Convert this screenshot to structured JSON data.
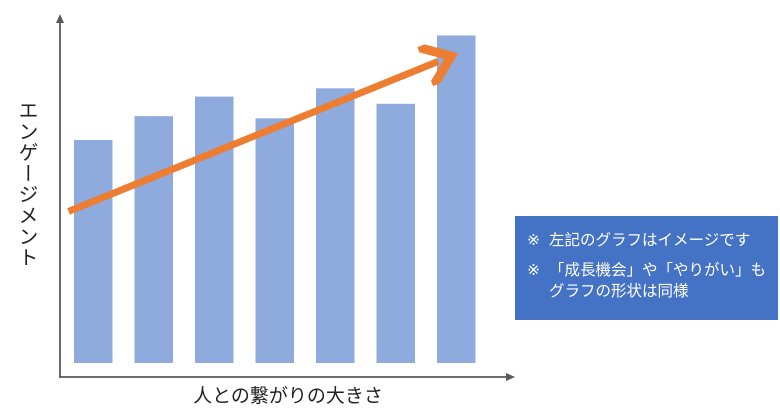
{
  "chart_data": {
    "type": "bar",
    "title": "",
    "xlabel": "人との繋がりの大きさ",
    "ylabel": "エンゲージメント",
    "categories": [
      "",
      "",
      "",
      "",
      "",
      "",
      ""
    ],
    "values": [
      229,
      252,
      271,
      250,
      279,
      264,
      330
    ],
    "ylim": [
      0,
      345
    ],
    "bar_color": "#8FAADC",
    "axis_color": "#595959",
    "trend_arrow": {
      "color": "#ED7D31",
      "from": [
        0.5,
        160
      ],
      "to": [
        6.0,
        305
      ]
    },
    "grid": false,
    "legend": "none"
  },
  "note": {
    "mark": "※",
    "line1": "左記のグラフはイメージです",
    "line2": "「成長機会」や「やりがい」もグラフの形状は同様",
    "bg_color": "#4472C4"
  }
}
